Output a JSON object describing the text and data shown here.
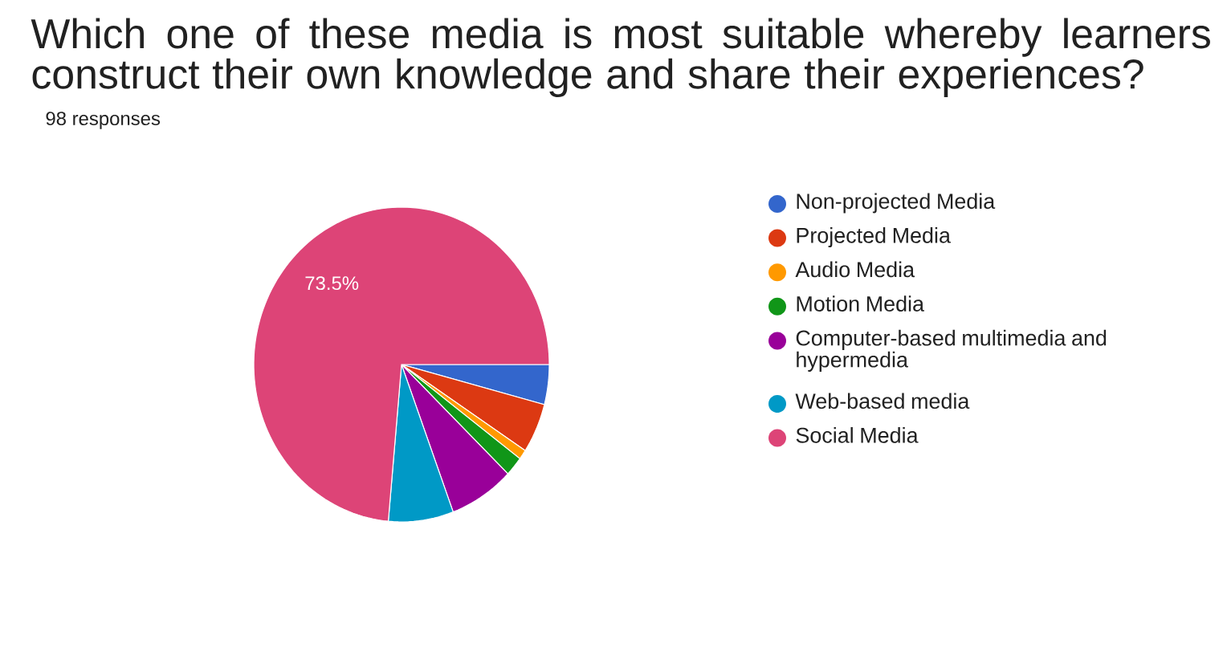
{
  "chart_data": {
    "type": "pie",
    "title": "Which one of these media is most suitable whereby learners construct their own knowledge and share their experiences?",
    "subtitle": "98 responses",
    "categories": [
      "Non-projected Media",
      "Projected Media",
      "Audio Media",
      "Motion Media",
      "Computer-based multimedia and hypermedia",
      "Web-based media",
      "Social Media"
    ],
    "values": [
      4.1,
      5.1,
      1.0,
      2.0,
      7.1,
      7.1,
      73.5
    ],
    "colors": [
      "#3366cc",
      "#dc3912",
      "#ff9900",
      "#109618",
      "#990099",
      "#0099c6",
      "#dd4477"
    ],
    "value_labels": [
      null,
      null,
      null,
      null,
      null,
      null,
      "73.5%"
    ],
    "legend": "right"
  }
}
